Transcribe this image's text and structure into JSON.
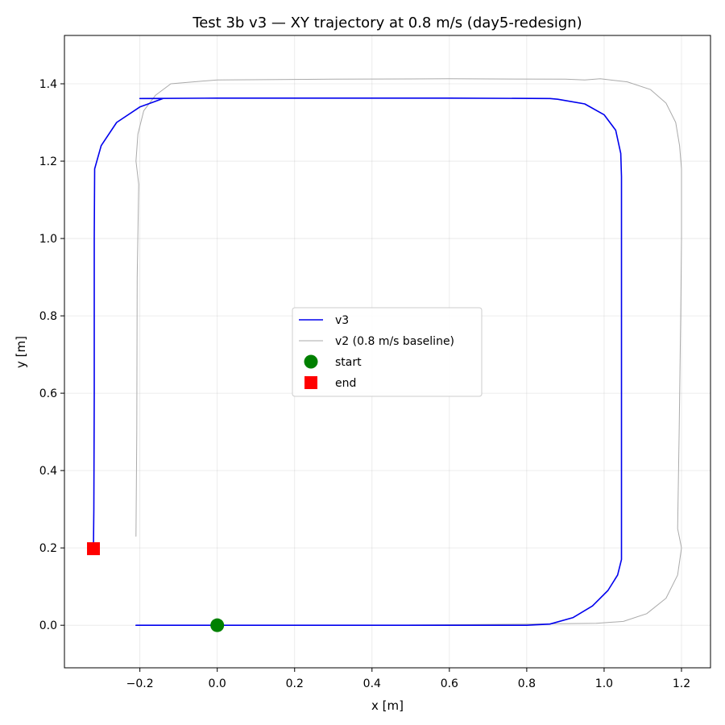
{
  "chart_data": {
    "type": "line",
    "title": "Test 3b v3 — XY trajectory at 0.8 m/s (day5-redesign)",
    "xlabel": "x [m]",
    "ylabel": "y [m]",
    "xlim": [
      -0.395,
      1.275
    ],
    "ylim": [
      -0.11,
      1.525
    ],
    "xticks": [
      -0.2,
      0.0,
      0.2,
      0.4,
      0.6,
      0.8,
      1.0,
      1.2
    ],
    "xtick_labels": [
      "−0.2",
      "0.0",
      "0.2",
      "0.4",
      "0.6",
      "0.8",
      "1.0",
      "1.2"
    ],
    "yticks": [
      0.0,
      0.2,
      0.4,
      0.6,
      0.8,
      1.0,
      1.2,
      1.4
    ],
    "ytick_labels": [
      "0.0",
      "0.2",
      "0.4",
      "0.6",
      "0.8",
      "1.0",
      "1.2",
      "1.4"
    ],
    "grid": true,
    "legend_position": "center",
    "legend": [
      {
        "label": "v3",
        "kind": "line",
        "color": "#0000ee"
      },
      {
        "label": "v2 (0.8 m/s baseline)",
        "kind": "line",
        "color": "#aaaaaa"
      },
      {
        "label": "start",
        "kind": "circle",
        "color": "#008000"
      },
      {
        "label": "end",
        "kind": "square",
        "color": "#ff0000"
      }
    ],
    "series": [
      {
        "name": "v3",
        "color": "#0000ee",
        "x": [
          -0.21,
          -0.13,
          0.0,
          0.2,
          0.4,
          0.6,
          0.8,
          0.86,
          0.92,
          0.97,
          1.01,
          1.035,
          1.045,
          1.045,
          1.045,
          1.045,
          1.043,
          1.03,
          1.0,
          0.95,
          0.88,
          0.86,
          0.6,
          0.3,
          0.0,
          -0.2,
          -0.14,
          -0.2,
          -0.26,
          -0.3,
          -0.317,
          -0.318,
          -0.318,
          -0.319,
          -0.32
        ],
        "y": [
          0.0,
          0.0,
          0.0,
          0.0,
          0.0,
          0.0,
          0.0,
          0.003,
          0.02,
          0.05,
          0.09,
          0.13,
          0.17,
          0.4,
          0.8,
          1.16,
          1.22,
          1.28,
          1.32,
          1.348,
          1.36,
          1.362,
          1.363,
          1.363,
          1.363,
          1.362,
          1.362,
          1.34,
          1.3,
          1.24,
          1.18,
          1.0,
          0.6,
          0.3,
          0.2
        ]
      },
      {
        "name": "v2 (0.8 m/s baseline)",
        "color": "#aaaaaa",
        "x": [
          -0.21,
          0.0,
          0.4,
          0.8,
          0.98,
          1.05,
          1.11,
          1.16,
          1.19,
          1.2,
          1.19,
          1.194,
          1.198,
          1.2,
          1.2,
          1.195,
          1.185,
          1.16,
          1.12,
          1.06,
          0.99,
          0.95,
          0.9,
          0.6,
          0.3,
          0.0,
          -0.12,
          -0.16,
          -0.19,
          -0.205,
          -0.21,
          -0.203,
          -0.207,
          -0.208,
          -0.21
        ],
        "y": [
          0.0,
          0.0,
          0.0,
          0.003,
          0.005,
          0.01,
          0.03,
          0.07,
          0.13,
          0.2,
          0.25,
          0.5,
          0.8,
          1.0,
          1.18,
          1.24,
          1.3,
          1.35,
          1.385,
          1.405,
          1.413,
          1.41,
          1.412,
          1.413,
          1.412,
          1.41,
          1.4,
          1.37,
          1.33,
          1.27,
          1.2,
          1.14,
          0.9,
          0.5,
          0.23
        ]
      }
    ],
    "markers": [
      {
        "name": "start",
        "shape": "circle",
        "color": "#008000",
        "x": 0.0,
        "y": 0.0
      },
      {
        "name": "end",
        "shape": "square",
        "color": "#ff0000",
        "x": -0.32,
        "y": 0.198
      }
    ]
  }
}
